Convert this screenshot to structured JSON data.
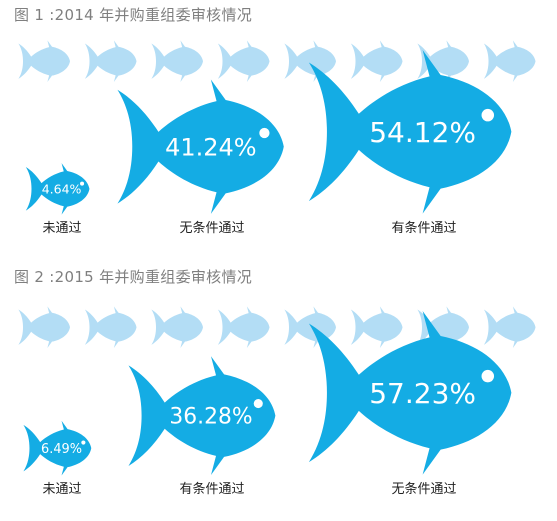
{
  "chart_data": [
    {
      "type": "pictograph",
      "title": "图 1 :2014 年并购重组委审核情况",
      "categories": [
        "未通过",
        "无条件通过",
        "有条件通过"
      ],
      "values": [
        4.64,
        41.24,
        54.12
      ],
      "value_labels": [
        "4.64%",
        "41.24%",
        "54.12%"
      ],
      "unit": "%"
    },
    {
      "type": "pictograph",
      "title": "图 2 :2015 年并购重组委审核情况",
      "categories": [
        "未通过",
        "有条件通过",
        "无条件通过"
      ],
      "values": [
        6.49,
        36.28,
        57.23
      ],
      "value_labels": [
        "6.49%",
        "36.28%",
        "57.23%"
      ],
      "unit": "%"
    }
  ],
  "colors": {
    "fish": "#14ace4",
    "fish_light": "#b3ddf5",
    "title_text": "#7f7f7f",
    "label_text": "#222222"
  },
  "icons": [
    "fish-icon"
  ]
}
